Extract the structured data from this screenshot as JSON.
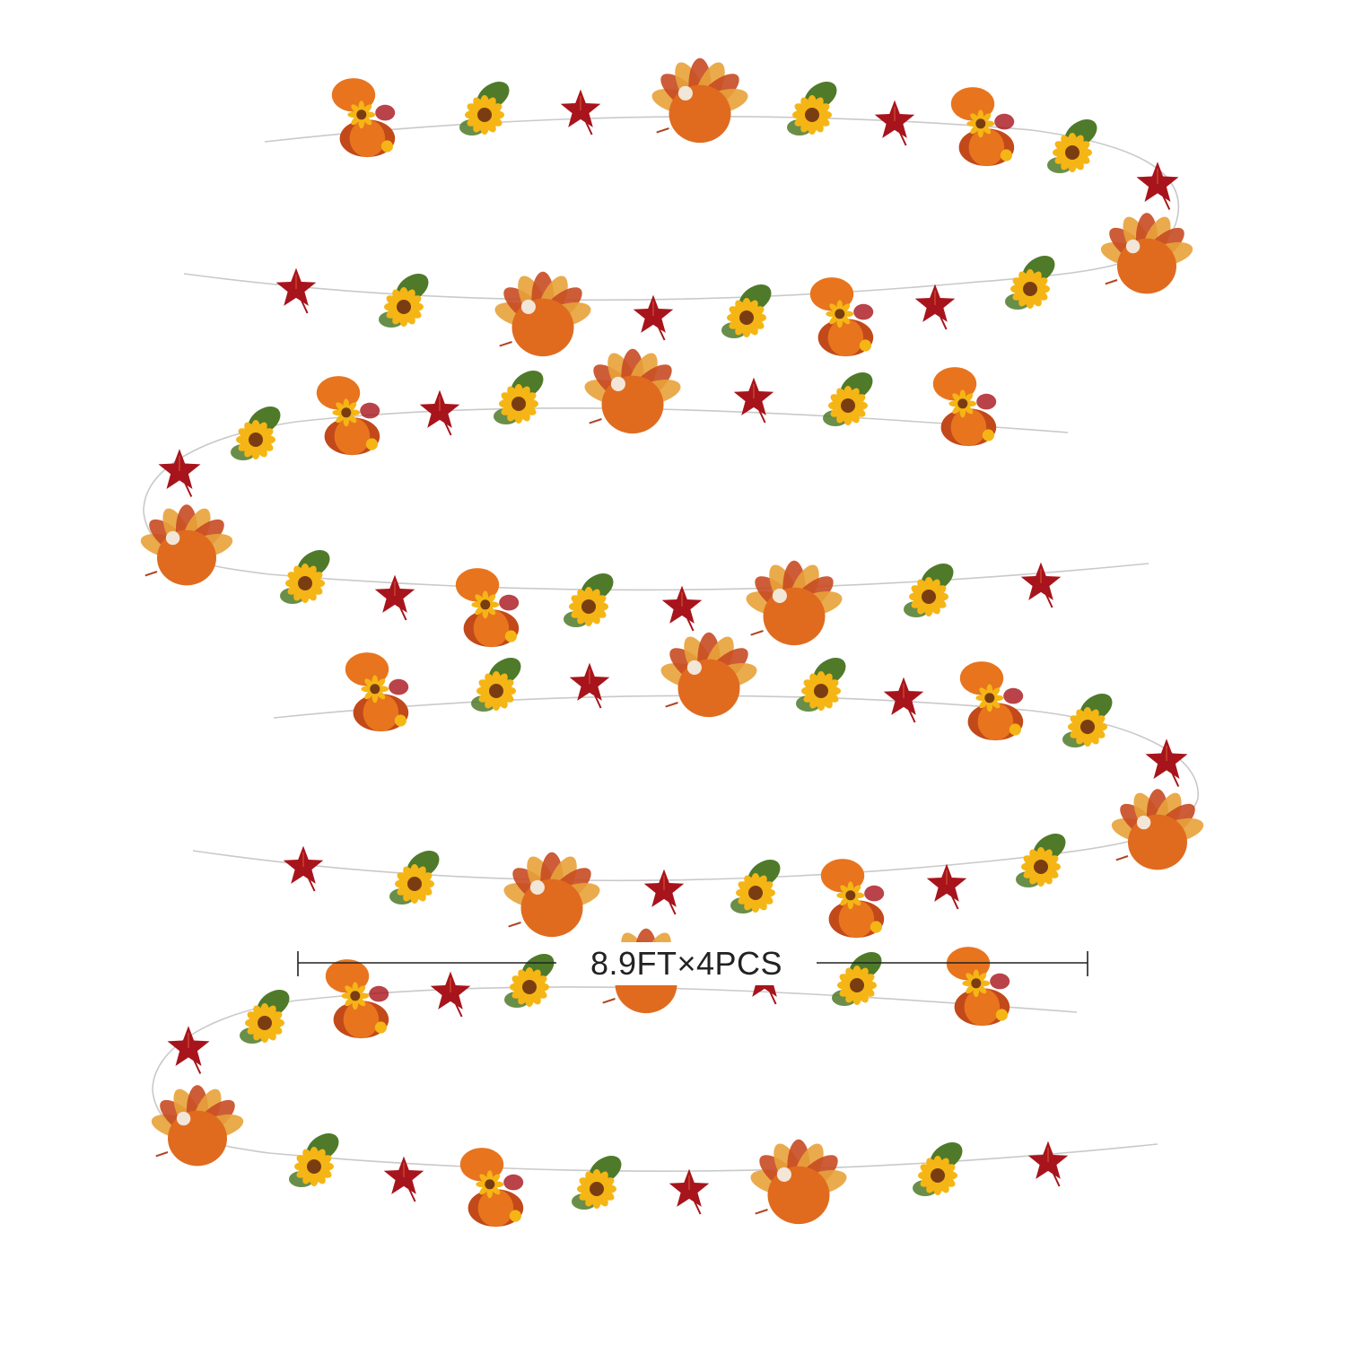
{
  "caption": "8.9FT×4PCS",
  "colors": {
    "string": "#c9c9c9",
    "maple_leaf": "#a8141c",
    "maple_vein": "#e06a3a",
    "pumpkin": "#e8741e",
    "pumpkin_dark": "#c2491a",
    "sunflower_petal": "#f5b515",
    "sunflower_center": "#7a3d12",
    "green_leaf": "#4f7a2a",
    "turkey_body": "#e06b1f",
    "turkey_feather": "#c84a22",
    "dimension_line": "#222222"
  },
  "garland": {
    "strands": 4,
    "motifs": [
      "pumpkin-cluster",
      "sunflower-leaf",
      "maple-leaf",
      "turkey"
    ]
  }
}
